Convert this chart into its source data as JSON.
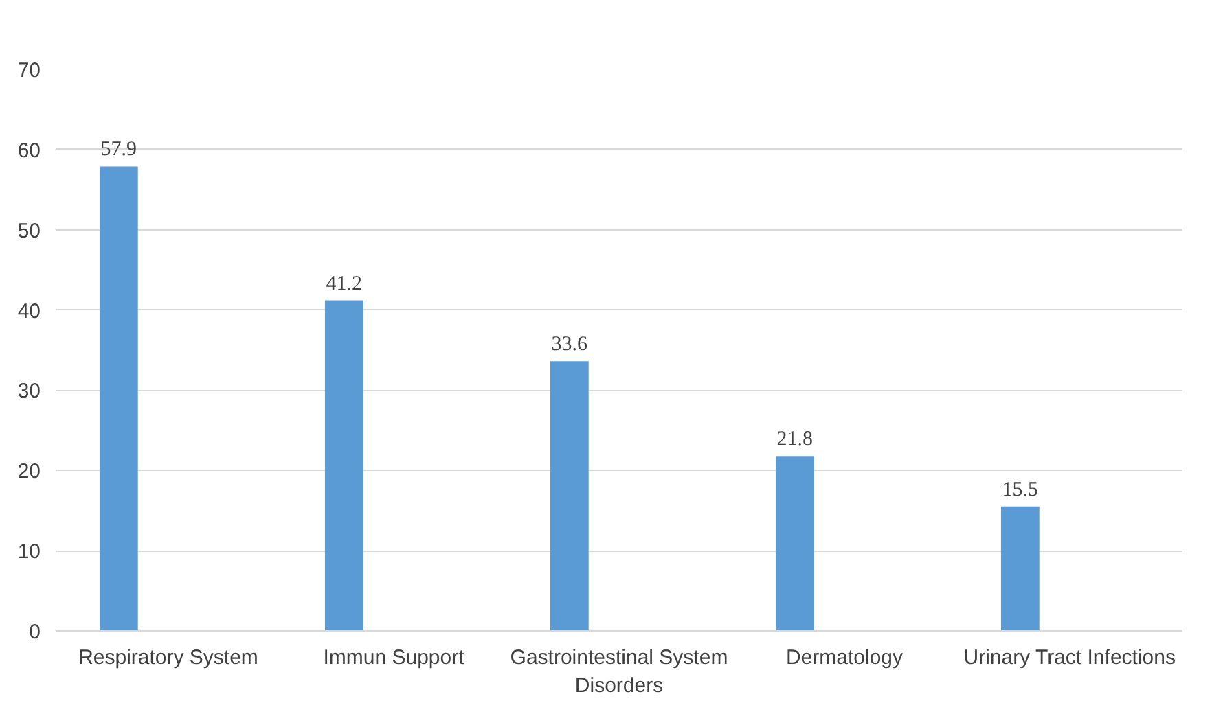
{
  "chart_data": {
    "type": "bar",
    "categories": [
      "Respiratory System",
      "Immun Support",
      "Gastrointestinal System Disorders",
      "Dermatology",
      "Urinary Tract Infections"
    ],
    "values": [
      57.9,
      41.2,
      33.6,
      21.8,
      15.5
    ],
    "color": "#5b9bd5",
    "ylim": [
      0,
      70
    ],
    "yticks": [
      0,
      10,
      20,
      30,
      40,
      50,
      60,
      70
    ],
    "grid": "y",
    "data_labels": true
  }
}
